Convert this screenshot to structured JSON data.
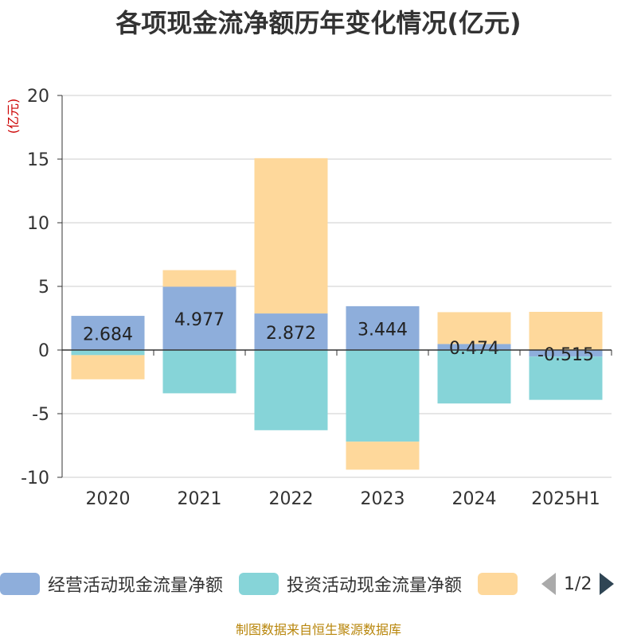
{
  "title": "各项现金流净额历年变化情况(亿元)",
  "source": "制图数据来自恒生聚源数据库",
  "pager": "1/2",
  "chart_data": {
    "type": "bar",
    "stacked": true,
    "categories": [
      "2020",
      "2021",
      "2022",
      "2023",
      "2024",
      "2025H1"
    ],
    "ylabel": "(亿元)",
    "ylim": [
      -10,
      20
    ],
    "yticks": [
      -10,
      -5,
      0,
      5,
      10,
      15,
      20
    ],
    "grid": true,
    "legend_position": "bottom",
    "series": [
      {
        "name": "经营活动现金流量净额",
        "color": "#8eaedb",
        "values": [
          2.684,
          4.977,
          2.872,
          3.444,
          0.474,
          -0.515
        ],
        "labels": [
          "2.684",
          "4.977",
          "2.872",
          "3.444",
          "0.474",
          "-0.515"
        ]
      },
      {
        "name": "投资活动现金流量净额",
        "color": "#86d4d8",
        "values": [
          -0.4,
          -3.4,
          -6.3,
          -7.2,
          -4.2,
          -3.4
        ]
      },
      {
        "color": "#fed89b",
        "values": [
          -1.9,
          1.3,
          12.2,
          -2.2,
          2.5,
          3.0
        ]
      }
    ]
  }
}
